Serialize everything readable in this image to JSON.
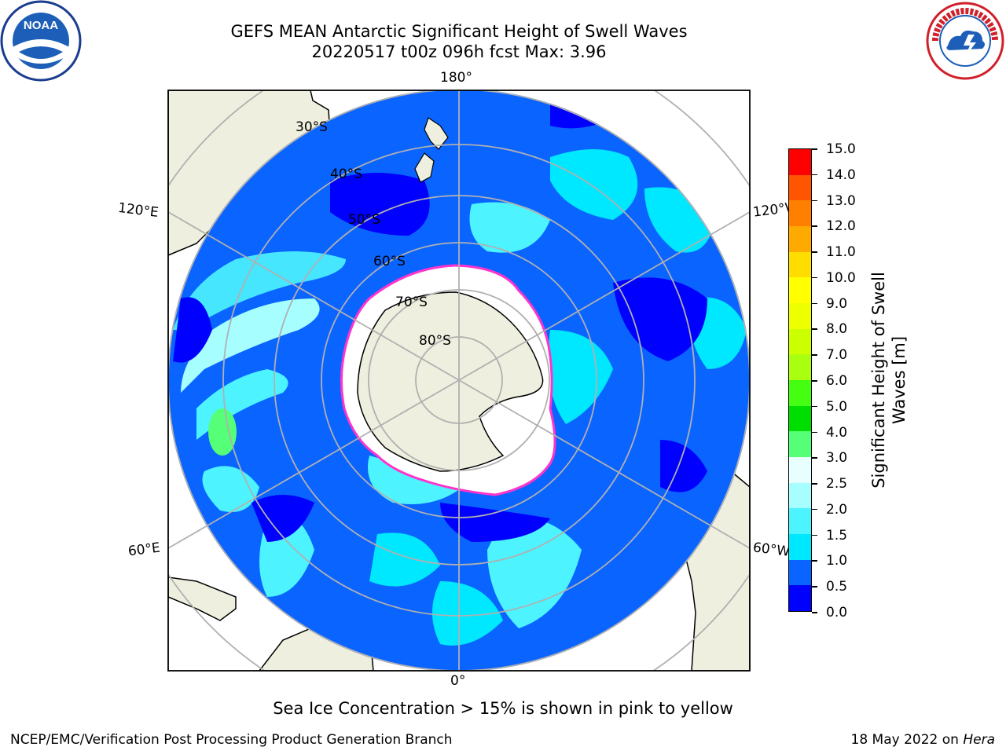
{
  "header": {
    "title": "GEFS MEAN Antarctic Significant Height of Swell Waves",
    "subtitle": "20220517 t00z 096h fcst   Max: 3.96"
  },
  "logos": {
    "left": "noaa-logo",
    "left_text": "NOAA",
    "right": "nws-logo",
    "right_text": "NATIONAL WEATHER SERVICE"
  },
  "map": {
    "projection": "south-polar-stereographic",
    "longitude_labels": {
      "top": "180°",
      "bottom": "0°",
      "upper_left": "120°E",
      "upper_right": "120°W",
      "lower_left": "60°E",
      "lower_right": "60°W"
    },
    "latitude_labels": [
      "30°S",
      "40°S",
      "50°S",
      "60°S",
      "70°S",
      "80°S"
    ],
    "colors": {
      "land": "#efefdf",
      "ice": "#ffffff",
      "ice_edge": "#ff33cc",
      "grid": "#b0b0b0"
    }
  },
  "colorbar": {
    "label": "Significant Height of Swell Waves [m]",
    "label_line1": "Significant Height of Swell",
    "label_line2": "Waves [m]",
    "ticks": [
      "0.0",
      "0.5",
      "1.0",
      "1.5",
      "2.0",
      "2.5",
      "3.0",
      "4.0",
      "5.0",
      "6.0",
      "7.0",
      "8.0",
      "9.0",
      "10.0",
      "11.0",
      "12.0",
      "13.0",
      "14.0",
      "15.0"
    ],
    "colors": [
      "#0000ff",
      "#0a64ff",
      "#00e8ff",
      "#4df4ff",
      "#a6feff",
      "#e8ffff",
      "#55ff77",
      "#00dd00",
      "#44ff11",
      "#aaff11",
      "#ccff00",
      "#eeff00",
      "#ffff00",
      "#ffdd00",
      "#ffaa00",
      "#ff8000",
      "#ff5500",
      "#ff0000"
    ]
  },
  "note": "Sea Ice Concentration > 15% is shown in pink to yellow",
  "footer": {
    "left": "NCEP/EMC/Verification Post Processing Product Generation Branch",
    "right_date": "18 May 2022 on",
    "right_machine": "Hera"
  }
}
